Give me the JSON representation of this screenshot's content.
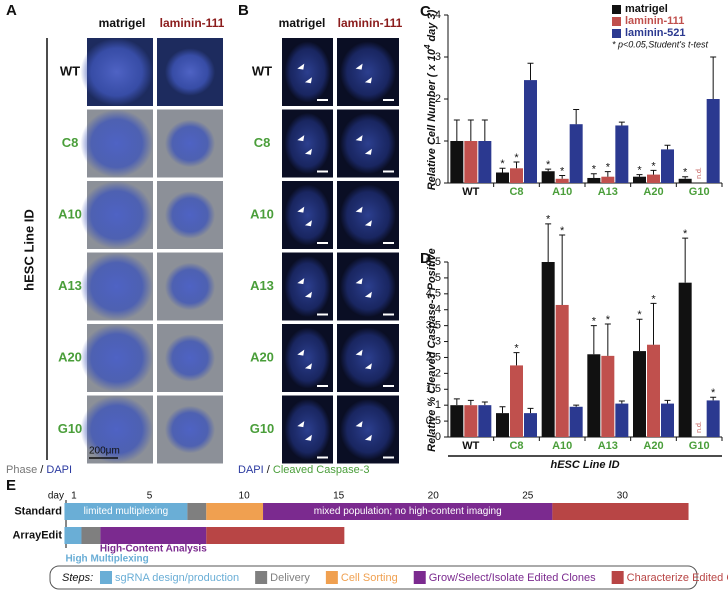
{
  "panel_a": {
    "label": "A",
    "columns": [
      "matrigel",
      "laminin-111"
    ],
    "rows": [
      "WT",
      "C8",
      "A10",
      "A13",
      "A20",
      "G10"
    ],
    "row_colors": [
      "#111111",
      "#4a9e3a",
      "#4a9e3a",
      "#4a9e3a",
      "#4a9e3a",
      "#4a9e3a"
    ],
    "axis_label": "hESC Line ID",
    "scale_bar": "200μm",
    "footer": [
      "Phase",
      "/",
      "DAPI"
    ]
  },
  "panel_b": {
    "label": "B",
    "columns": [
      "matrigel",
      "laminin-111"
    ],
    "rows": [
      "WT",
      "C8",
      "A10",
      "A13",
      "A20",
      "G10"
    ],
    "row_colors": [
      "#111111",
      "#4a9e3a",
      "#4a9e3a",
      "#4a9e3a",
      "#4a9e3a",
      "#4a9e3a"
    ],
    "footer": [
      "DAPI",
      "/",
      "Cleaved Caspase-3"
    ]
  },
  "chart_data": [
    {
      "type": "bar",
      "panel": "C",
      "y_label": {
        "text": "Relative Cell Number ( x 10",
        "sup": "4",
        "tail": " day 3)"
      },
      "categories": [
        "WT",
        "C8",
        "A10",
        "A13",
        "A20",
        "G10"
      ],
      "category_colors": [
        "#111111",
        "#4a9e3a",
        "#4a9e3a",
        "#4a9e3a",
        "#4a9e3a",
        "#4a9e3a"
      ],
      "series": [
        {
          "name": "matrigel",
          "color": "#111111",
          "values": [
            1.0,
            0.25,
            0.28,
            0.12,
            0.15,
            0.1
          ],
          "errors": [
            0.5,
            0.1,
            0.05,
            0.1,
            0.05,
            0.05
          ],
          "annotations": [
            null,
            "*",
            "*",
            "*",
            "*",
            "*"
          ]
        },
        {
          "name": "laminin-111",
          "color": "#c0504d",
          "values": [
            1.0,
            0.35,
            0.1,
            0.15,
            0.2,
            null
          ],
          "errors": [
            0.5,
            0.15,
            0.08,
            0.12,
            0.1,
            null
          ],
          "annotations": [
            null,
            "*",
            "*",
            "*",
            "*",
            "n.d."
          ]
        },
        {
          "name": "laminin-521",
          "color": "#2b3990",
          "values": [
            1.0,
            2.45,
            1.4,
            1.37,
            0.8,
            2.0
          ],
          "errors": [
            0.5,
            0.4,
            0.35,
            0.08,
            0.1,
            1.0
          ],
          "annotations": [
            null,
            null,
            null,
            null,
            null,
            null
          ]
        }
      ],
      "ylim": [
        0,
        4
      ],
      "yticks": [
        0,
        1,
        2,
        3,
        4
      ],
      "legend": "upper right",
      "footnote": "* p<0.05,Student's t-test"
    },
    {
      "type": "bar",
      "panel": "D",
      "y_label": {
        "text": "Relative % Cleaved Caspase-3 Positive"
      },
      "x_label": "hESC Line ID",
      "categories": [
        "WT",
        "C8",
        "A10",
        "A13",
        "A20",
        "G10"
      ],
      "category_colors": [
        "#111111",
        "#4a9e3a",
        "#4a9e3a",
        "#4a9e3a",
        "#4a9e3a",
        "#4a9e3a"
      ],
      "series": [
        {
          "color": "#111111",
          "values": [
            1.0,
            0.75,
            5.5,
            2.6,
            2.7,
            4.85
          ],
          "errors": [
            0.2,
            0.2,
            1.2,
            0.9,
            1.0,
            1.4
          ],
          "annotations": [
            null,
            null,
            "*",
            "*",
            "*",
            "*"
          ]
        },
        {
          "color": "#c0504d",
          "values": [
            1.0,
            2.25,
            4.15,
            2.55,
            2.9,
            null
          ],
          "errors": [
            0.15,
            0.4,
            2.2,
            1.0,
            1.3,
            null
          ],
          "annotations": [
            null,
            "*",
            "*",
            "*",
            "*",
            "n.d."
          ]
        },
        {
          "color": "#2b3990",
          "values": [
            1.0,
            0.75,
            0.95,
            1.05,
            1.05,
            1.15
          ],
          "errors": [
            0.1,
            0.15,
            0.05,
            0.08,
            0.1,
            0.1
          ],
          "annotations": [
            null,
            null,
            null,
            null,
            null,
            "*"
          ]
        }
      ],
      "ylim": [
        0,
        5.5
      ],
      "yticks": [
        0,
        0.5,
        1,
        1.5,
        2,
        2.5,
        3,
        3.5,
        4,
        4.5,
        5,
        5.5
      ]
    },
    {
      "type": "timeline",
      "panel": "E",
      "x_label": "day",
      "xlim": [
        0,
        34
      ],
      "xticks": [
        1,
        5,
        10,
        15,
        20,
        25,
        30
      ],
      "rows": [
        {
          "name": "Standard",
          "segments": [
            {
              "start": 0.5,
              "end": 7,
              "color": "#6aaed6",
              "label": "limited multiplexing"
            },
            {
              "start": 7,
              "end": 8,
              "color": "#7f7f7f"
            },
            {
              "start": 8,
              "end": 11,
              "color": "#f0a050"
            },
            {
              "start": 11,
              "end": 26.3,
              "color": "#7b2a8f",
              "label": "mixed population; no high-content imaging"
            },
            {
              "start": 26.3,
              "end": 33.5,
              "color": "#b84545"
            }
          ]
        },
        {
          "name": "ArrayEdit",
          "segments": [
            {
              "start": 0.5,
              "end": 1.4,
              "color": "#6aaed6",
              "label": "High Multiplexing"
            },
            {
              "start": 1.4,
              "end": 2.4,
              "color": "#7f7f7f"
            },
            {
              "start": 2.4,
              "end": 8,
              "color": "#7b2a8f",
              "label": "High-Content Analysis"
            },
            {
              "start": 8,
              "end": 15.3,
              "color": "#b84545"
            }
          ]
        }
      ],
      "steps_label": "Steps:",
      "steps": [
        {
          "name": "sgRNA design/production",
          "color": "#6aaed6"
        },
        {
          "name": "Delivery",
          "color": "#7f7f7f"
        },
        {
          "name": "Cell Sorting",
          "color": "#f0a050"
        },
        {
          "name": "Grow/Select/Isolate Edited Clones",
          "color": "#7b2a8f"
        },
        {
          "name": "Characterize Edited Cells",
          "color": "#b84545"
        }
      ]
    }
  ]
}
